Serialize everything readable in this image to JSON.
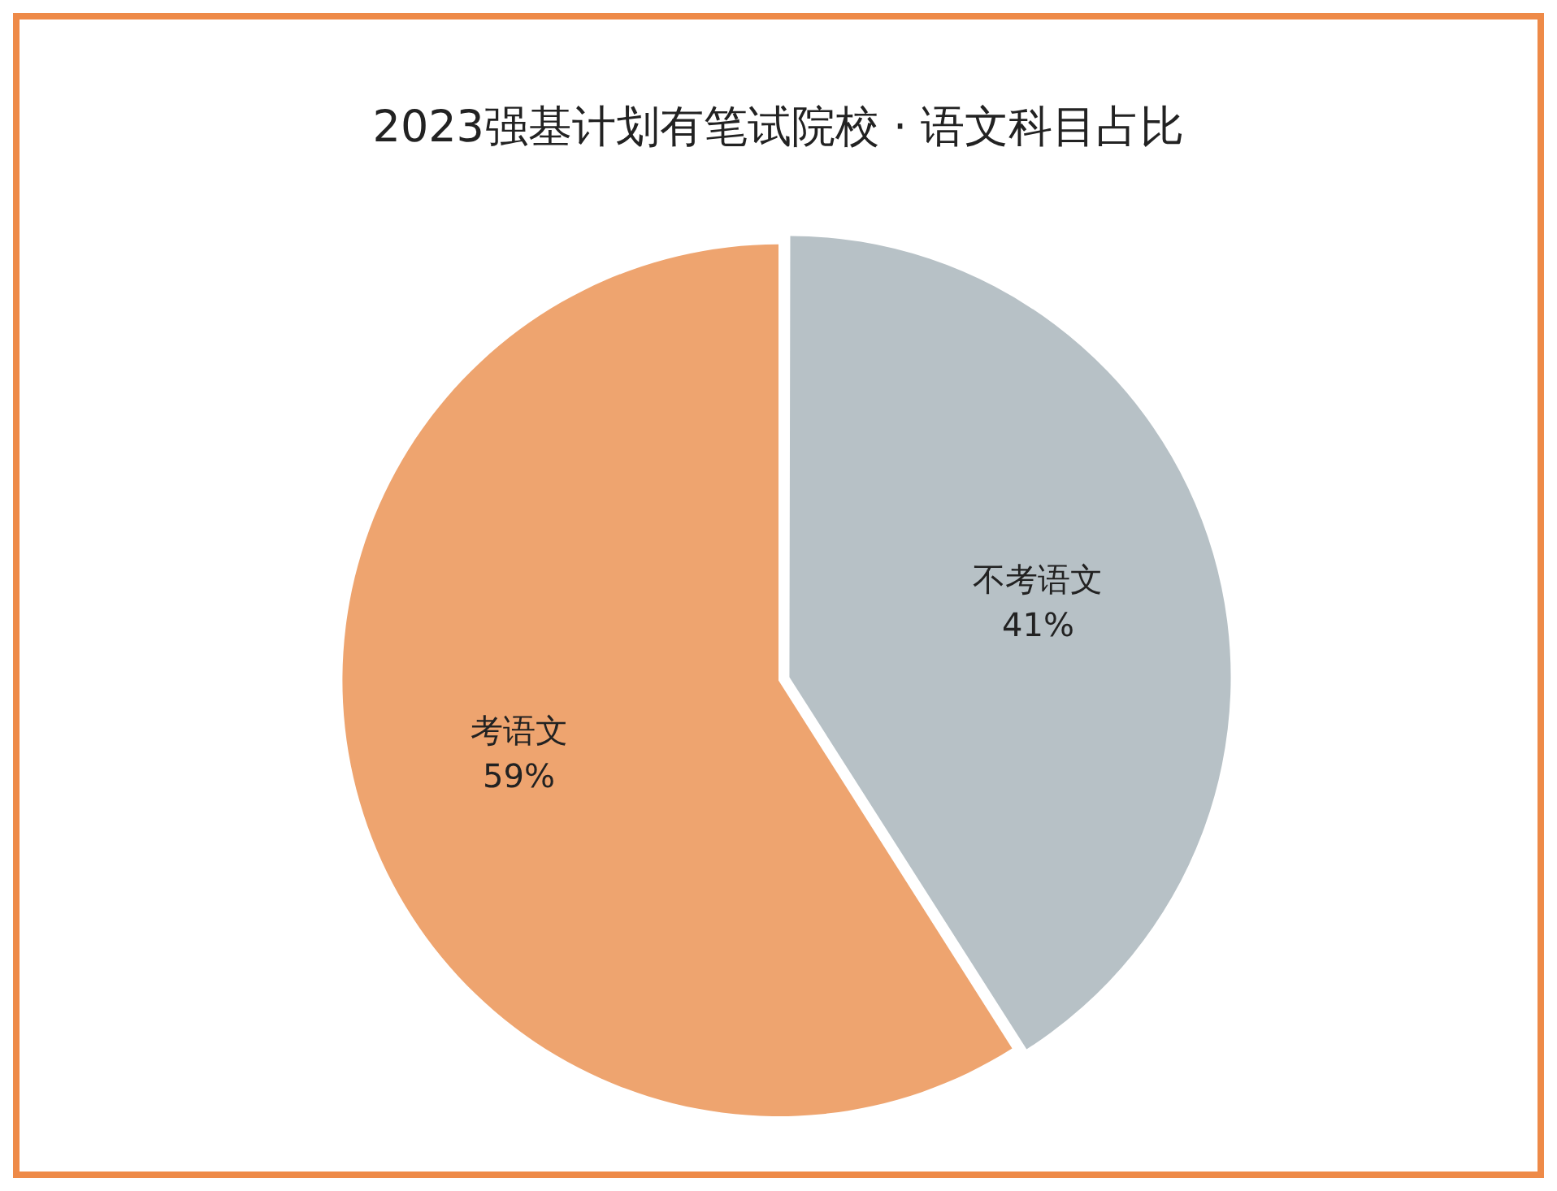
{
  "chart_data": {
    "type": "pie",
    "title": "2023强基计划有笔试院校 · 语文科目占比",
    "categories": [
      "不考语文",
      "考语文"
    ],
    "values": [
      41,
      59
    ],
    "colors": [
      "#b7c1c6",
      "#eea46f"
    ],
    "value_labels": [
      "41%",
      "59%"
    ],
    "legend": false
  }
}
